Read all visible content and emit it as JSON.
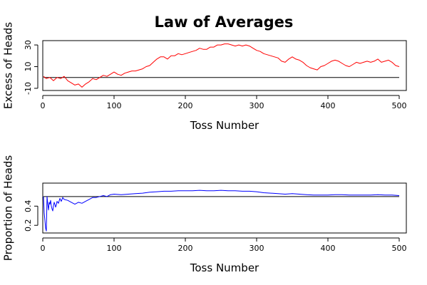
{
  "figure": {
    "title": "Law of Averages"
  },
  "chart_data": [
    {
      "type": "line",
      "xlabel": "Toss Number",
      "ylabel": "Excess of Heads",
      "xlim": [
        0,
        510
      ],
      "ylim": [
        -12,
        34
      ],
      "xticks": [
        0,
        100,
        200,
        300,
        400,
        500
      ],
      "xtick_labels": [
        "0",
        "100",
        "200",
        "300",
        "400",
        "500"
      ],
      "yticks": [
        -10,
        10,
        30
      ],
      "ytick_labels": [
        "-10",
        "10",
        "30"
      ],
      "reference_line": 0,
      "series_color": "#ff0000",
      "reference_color": "#000000",
      "series": [
        {
          "name": "",
          "x": [
            1,
            5,
            10,
            15,
            20,
            25,
            30,
            35,
            40,
            45,
            50,
            55,
            60,
            65,
            70,
            75,
            80,
            85,
            90,
            95,
            100,
            105,
            110,
            115,
            120,
            125,
            130,
            135,
            140,
            145,
            150,
            155,
            160,
            165,
            170,
            175,
            180,
            185,
            190,
            195,
            200,
            205,
            210,
            215,
            220,
            225,
            230,
            235,
            240,
            245,
            250,
            255,
            260,
            265,
            270,
            275,
            280,
            285,
            290,
            295,
            300,
            305,
            310,
            315,
            320,
            325,
            330,
            335,
            340,
            345,
            350,
            355,
            360,
            365,
            370,
            375,
            380,
            385,
            390,
            395,
            400,
            405,
            410,
            415,
            420,
            425,
            430,
            435,
            440,
            445,
            450,
            455,
            460,
            465,
            470,
            475,
            480,
            485,
            490,
            495,
            500
          ],
          "y": [
            1,
            -1,
            0,
            -3,
            0,
            -1,
            1,
            -3,
            -5,
            -7,
            -6,
            -9,
            -6,
            -4,
            -1,
            -2,
            0,
            2,
            1,
            3,
            5,
            3,
            2,
            4,
            5,
            6,
            6,
            7,
            8,
            10,
            11,
            14,
            17,
            19,
            19,
            17,
            20,
            20,
            22,
            21,
            22,
            23,
            24,
            25,
            27,
            26,
            26,
            28,
            28,
            30,
            30,
            31,
            31,
            30,
            29,
            30,
            29,
            30,
            29,
            27,
            25,
            24,
            22,
            21,
            20,
            19,
            18,
            15,
            14,
            17,
            19,
            17,
            16,
            14,
            11,
            9,
            8,
            7,
            10,
            11,
            13,
            15,
            16,
            15,
            13,
            11,
            10,
            12,
            14,
            13,
            14,
            15,
            14,
            15,
            17,
            14,
            15,
            16,
            14,
            11,
            10
          ]
        }
      ]
    },
    {
      "type": "line",
      "xlabel": "Toss Number",
      "ylabel": "Proportion of Heads",
      "xlim": [
        0,
        510
      ],
      "ylim": [
        0.12,
        0.64
      ],
      "xticks": [
        0,
        100,
        200,
        300,
        400,
        500
      ],
      "xtick_labels": [
        "0",
        "100",
        "200",
        "300",
        "400",
        "500"
      ],
      "yticks": [
        0.2,
        0.4
      ],
      "ytick_labels": [
        "0.2",
        "0.4"
      ],
      "reference_line": 0.5,
      "series_color": "#0000ff",
      "reference_color": "#000000",
      "series": [
        {
          "name": "",
          "x": [
            1,
            2,
            3,
            4,
            5,
            6,
            7,
            8,
            9,
            10,
            11,
            12,
            13,
            14,
            15,
            16,
            17,
            18,
            19,
            20,
            22,
            24,
            26,
            28,
            30,
            35,
            40,
            45,
            50,
            55,
            60,
            65,
            70,
            75,
            80,
            85,
            90,
            95,
            100,
            110,
            120,
            130,
            140,
            150,
            160,
            170,
            180,
            190,
            200,
            210,
            220,
            230,
            240,
            250,
            260,
            270,
            280,
            290,
            300,
            310,
            320,
            330,
            340,
            350,
            360,
            370,
            380,
            390,
            400,
            410,
            420,
            430,
            440,
            450,
            460,
            470,
            480,
            490,
            500
          ],
          "y": [
            0.5,
            0.33,
            0.25,
            0.17,
            0.14,
            0.5,
            0.42,
            0.36,
            0.44,
            0.42,
            0.46,
            0.4,
            0.37,
            0.35,
            0.4,
            0.44,
            0.42,
            0.39,
            0.41,
            0.45,
            0.43,
            0.48,
            0.45,
            0.49,
            0.47,
            0.46,
            0.44,
            0.42,
            0.44,
            0.43,
            0.45,
            0.47,
            0.49,
            0.49,
            0.5,
            0.51,
            0.5,
            0.52,
            0.525,
            0.52,
            0.525,
            0.53,
            0.535,
            0.545,
            0.55,
            0.555,
            0.555,
            0.56,
            0.56,
            0.56,
            0.565,
            0.56,
            0.56,
            0.565,
            0.56,
            0.56,
            0.555,
            0.555,
            0.55,
            0.54,
            0.535,
            0.53,
            0.525,
            0.53,
            0.525,
            0.52,
            0.515,
            0.515,
            0.515,
            0.52,
            0.52,
            0.515,
            0.515,
            0.515,
            0.515,
            0.52,
            0.515,
            0.515,
            0.51
          ]
        }
      ]
    }
  ]
}
